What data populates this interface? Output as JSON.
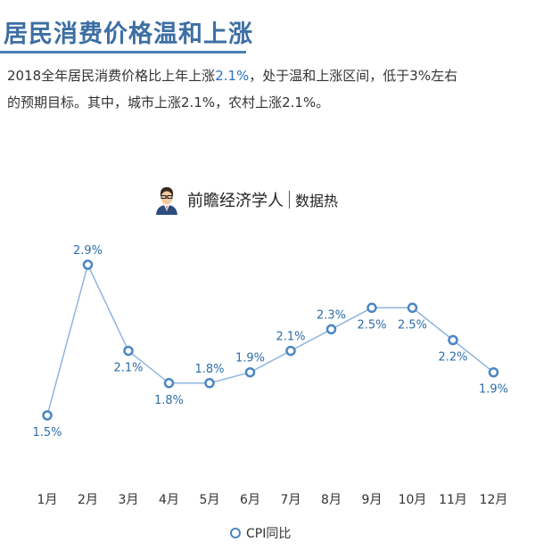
{
  "header": {
    "title": "居民消费价格温和上涨"
  },
  "description": {
    "line1_before": "2018全年居民消费价格比上年上涨",
    "line1_highlight": "2.1%",
    "line1_after": "，处于温和上涨区间，低于3%左右",
    "line2": "的预期目标。其中，城市上涨2.1%，农村上涨2.1%。"
  },
  "brand": {
    "name": "前瞻经济学人",
    "tag": "数据热",
    "icon": "person-avatar-icon"
  },
  "colors": {
    "title": "#3c6fa3",
    "line": "#8fb5df",
    "marker": "#4b86c2",
    "label": "#2e6ea8"
  },
  "chart_data": {
    "type": "line",
    "categories": [
      "1月",
      "2月",
      "3月",
      "4月",
      "5月",
      "6月",
      "7月",
      "8月",
      "9月",
      "10月",
      "11月",
      "12月"
    ],
    "series": [
      {
        "name": "CPI同比",
        "values": [
          1.5,
          2.9,
          2.1,
          1.8,
          1.8,
          1.9,
          2.1,
          2.3,
          2.5,
          2.5,
          2.2,
          1.9
        ],
        "labels": [
          "1.5%",
          "2.9%",
          "2.1%",
          "1.8%",
          "1.8%",
          "1.9%",
          "2.1%",
          "2.3%",
          "2.5%",
          "2.5%",
          "2.2%",
          "1.9%"
        ]
      }
    ],
    "title": "",
    "xlabel": "",
    "ylabel": "",
    "ylim": [
      1.5,
      2.9
    ],
    "grid": false,
    "legend": "bottom-center"
  }
}
